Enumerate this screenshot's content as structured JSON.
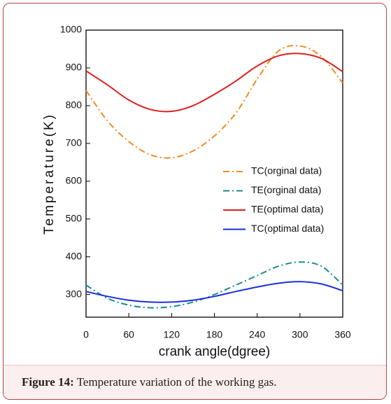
{
  "chart_data": {
    "type": "line",
    "xlabel": "crank angle(dgree)",
    "ylabel": "Temperature(K)",
    "x": [
      0,
      30,
      60,
      90,
      120,
      150,
      180,
      210,
      240,
      270,
      300,
      330,
      360
    ],
    "series": [
      {
        "name": "TC(orginal data)",
        "color": "#f28c1c",
        "dash": "dash-dot",
        "values": [
          840,
          760,
          705,
          670,
          662,
          680,
          720,
          780,
          870,
          945,
          958,
          930,
          860
        ]
      },
      {
        "name": "TE(orginal data)",
        "color": "#1a8a8a",
        "dash": "dash-dot",
        "values": [
          325,
          290,
          272,
          265,
          268,
          280,
          300,
          325,
          350,
          375,
          386,
          375,
          325
        ]
      },
      {
        "name": "TE(optimal data)",
        "color": "#e01e1e",
        "dash": "solid",
        "values": [
          892,
          855,
          815,
          790,
          785,
          800,
          830,
          865,
          905,
          932,
          938,
          925,
          890
        ]
      },
      {
        "name": "TC(optimal data)",
        "color": "#1a2ee0",
        "dash": "solid",
        "values": [
          308,
          295,
          285,
          280,
          280,
          285,
          295,
          308,
          320,
          330,
          334,
          328,
          310
        ]
      }
    ],
    "xlim": [
      0,
      360
    ],
    "xticks": [
      0,
      60,
      120,
      180,
      240,
      300,
      360
    ],
    "ylim": [
      240,
      1000
    ],
    "yticks": [
      300,
      400,
      500,
      600,
      700,
      800,
      900,
      1000
    ],
    "grid": false,
    "legend": "right"
  },
  "caption": {
    "label": "Figure 14:",
    "text": "Temperature variation of the working gas."
  }
}
